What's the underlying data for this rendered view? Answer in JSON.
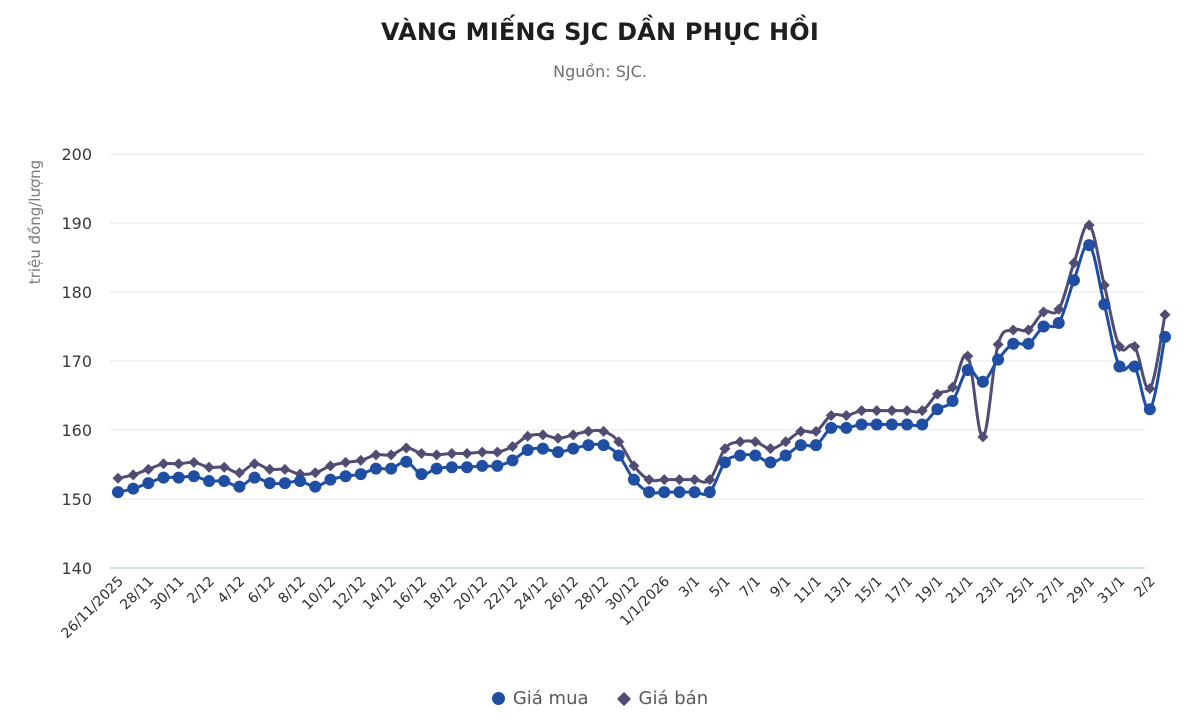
{
  "header": {
    "title": "VÀNG MIẾNG SJC DẦN PHỤC HỒI",
    "subtitle": "Nguồn: SJC."
  },
  "legend": [
    {
      "label": "Giá mua",
      "marker": "circle",
      "color": "#1f4ea3"
    },
    {
      "label": "Giá bán",
      "marker": "diamond",
      "color": "#504c72"
    }
  ],
  "chart_data": {
    "type": "line",
    "title": "VÀNG MIẾNG SJC DẦN PHỤC HỒI",
    "subtitle": "Nguồn: SJC.",
    "xlabel": "",
    "ylabel": "triệu đồng/lượng",
    "ylim": [
      140,
      200
    ],
    "yticks": [
      140,
      150,
      160,
      170,
      180,
      190,
      200
    ],
    "grid": true,
    "legend_position": "bottom",
    "x_tick_labels": [
      "26/11/2025",
      "28/11",
      "30/11",
      "2/12",
      "4/12",
      "6/12",
      "8/12",
      "10/12",
      "12/12",
      "14/12",
      "16/12",
      "18/12",
      "20/12",
      "22/12",
      "24/12",
      "26/12",
      "28/12",
      "30/12",
      "1/1/2026",
      "3/1",
      "5/1",
      "7/1",
      "9/1",
      "11/1",
      "13/1",
      "15/1",
      "17/1",
      "19/1",
      "21/1",
      "23/1",
      "25/1",
      "27/1",
      "29/1",
      "31/1",
      "2/2"
    ],
    "x": [
      "26/11/2025",
      "27/11",
      "28/11",
      "29/11",
      "30/11",
      "1/12",
      "2/12",
      "3/12",
      "4/12",
      "5/12",
      "6/12",
      "7/12",
      "8/12",
      "9/12",
      "10/12",
      "11/12",
      "12/12",
      "13/12",
      "14/12",
      "15/12",
      "16/12",
      "17/12",
      "18/12",
      "19/12",
      "20/12",
      "21/12",
      "22/12",
      "23/12",
      "24/12",
      "25/12",
      "26/12",
      "27/12",
      "28/12",
      "29/12",
      "30/12",
      "31/12",
      "1/1/2026",
      "2/1",
      "3/1",
      "4/1",
      "5/1",
      "6/1",
      "7/1",
      "8/1",
      "9/1",
      "10/1",
      "11/1",
      "12/1",
      "13/1",
      "14/1",
      "15/1",
      "16/1",
      "17/1",
      "18/1",
      "19/1",
      "20/1",
      "21/1",
      "22/1",
      "23/1",
      "24/1",
      "25/1",
      "26/1",
      "27/1",
      "28/1",
      "29/1",
      "30/1",
      "31/1",
      "1/2",
      "2/2",
      "3/2"
    ],
    "series": [
      {
        "name": "Giá mua",
        "color": "#1f4ea3",
        "marker": "circle",
        "values": [
          151,
          151.5,
          152.3,
          153.1,
          153.1,
          153.3,
          152.6,
          152.6,
          151.8,
          153.1,
          152.3,
          152.3,
          152.6,
          151.8,
          152.8,
          153.3,
          153.6,
          154.4,
          154.4,
          155.4,
          153.6,
          154.4,
          154.6,
          154.6,
          154.8,
          154.8,
          155.6,
          157.1,
          157.3,
          156.8,
          157.3,
          157.8,
          157.8,
          156.3,
          152.8,
          151,
          151,
          151,
          151,
          151,
          155.3,
          156.3,
          156.3,
          155.3,
          156.3,
          157.8,
          157.8,
          160.3,
          160.3,
          160.8,
          160.8,
          160.8,
          160.8,
          160.8,
          163,
          164.2,
          168.7,
          167,
          170.2,
          172.5,
          172.5,
          175,
          175.5,
          181.7,
          186.8,
          178.2,
          169.2,
          169.2,
          163,
          173.5
        ]
      },
      {
        "name": "Giá bán",
        "color": "#504c72",
        "marker": "diamond",
        "values": [
          153,
          153.5,
          154.3,
          155.1,
          155.1,
          155.3,
          154.6,
          154.6,
          153.8,
          155.1,
          154.3,
          154.3,
          153.6,
          153.8,
          154.8,
          155.3,
          155.6,
          156.4,
          156.4,
          157.4,
          156.6,
          156.4,
          156.6,
          156.6,
          156.8,
          156.8,
          157.6,
          159.1,
          159.3,
          158.8,
          159.3,
          159.8,
          159.8,
          158.3,
          154.8,
          152.8,
          152.8,
          152.8,
          152.8,
          152.8,
          157.3,
          158.3,
          158.3,
          157.3,
          158.3,
          159.8,
          159.8,
          162.1,
          162.1,
          162.8,
          162.8,
          162.8,
          162.8,
          162.8,
          165.2,
          166.2,
          170.7,
          159,
          172.4,
          174.5,
          174.5,
          177.1,
          177.5,
          184.2,
          189.7,
          181,
          172.1,
          172.1,
          166,
          176.7
        ]
      }
    ]
  }
}
